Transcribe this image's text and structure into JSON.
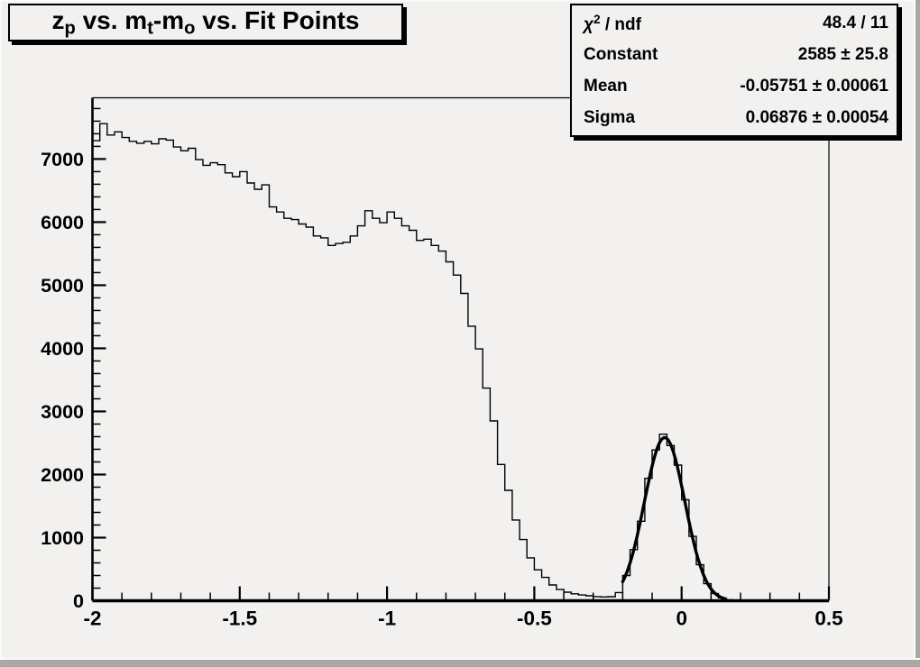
{
  "window": {
    "background": "#f2f1ef",
    "bevel_light": "#fbfbfa",
    "bevel_dark": "#a9a8a5",
    "foreground": "#000000"
  },
  "title_box": {
    "parts": [
      {
        "t": "z"
      },
      {
        "sub": "p"
      },
      {
        "t": " vs. m"
      },
      {
        "sub": "t"
      },
      {
        "t": "-m"
      },
      {
        "sub": "o"
      },
      {
        "t": " vs. Fit Points"
      }
    ]
  },
  "stats_box": {
    "rows": [
      {
        "label_parts": [
          {
            "t": "χ",
            "i": true
          },
          {
            "sup": "2"
          },
          {
            "t": " / ndf"
          }
        ],
        "value": "48.4 / 11"
      },
      {
        "label_parts": [
          {
            "t": "Constant"
          }
        ],
        "value": "2585 ± 25.8"
      },
      {
        "label_parts": [
          {
            "t": "Mean"
          }
        ],
        "value": "-0.05751 ± 0.00061"
      },
      {
        "label_parts": [
          {
            "t": "Sigma"
          }
        ],
        "value": "0.06876 ± 0.00054"
      }
    ]
  },
  "chart_data": {
    "type": "bar",
    "subtype": "step-histogram",
    "title": "z_p vs. m_t-m_o vs. Fit Points",
    "xlabel": "",
    "ylabel": "",
    "x_range": [
      -2,
      0.5
    ],
    "y_range": [
      0,
      7970
    ],
    "x_start": -2,
    "bin_width": 0.025,
    "n_bins": 100,
    "bins": [
      7290,
      7560,
      7380,
      7430,
      7340,
      7280,
      7250,
      7280,
      7240,
      7320,
      7300,
      7190,
      7130,
      7170,
      6990,
      6900,
      6940,
      6910,
      6780,
      6720,
      6800,
      6620,
      6520,
      6590,
      6240,
      6160,
      6060,
      6040,
      5970,
      5920,
      5780,
      5750,
      5630,
      5660,
      5680,
      5780,
      5940,
      6180,
      6060,
      5990,
      6160,
      6060,
      5940,
      5870,
      5710,
      5730,
      5630,
      5540,
      5370,
      5160,
      4870,
      4350,
      3990,
      3370,
      2850,
      2160,
      1750,
      1280,
      970,
      680,
      490,
      370,
      250,
      180,
      135,
      110,
      92,
      78,
      66,
      60,
      64,
      130,
      400,
      810,
      1260,
      1940,
      2390,
      2640,
      2460,
      2150,
      1600,
      1020,
      570,
      270,
      115,
      45,
      15,
      5,
      2,
      0,
      0,
      0,
      0,
      0,
      0,
      0,
      0,
      0,
      0,
      0
    ],
    "x_ticks": {
      "major": [
        -2,
        -1.5,
        -1,
        -0.5,
        0,
        0.5
      ],
      "major_labels": [
        "-2",
        "-1.5",
        "-1",
        "-0.5",
        "0",
        "0.5"
      ],
      "minor_step": 0.1
    },
    "y_ticks": {
      "major": [
        0,
        1000,
        2000,
        3000,
        4000,
        5000,
        6000,
        7000
      ],
      "major_labels": [
        "0",
        "1000",
        "2000",
        "3000",
        "4000",
        "5000",
        "6000",
        "7000"
      ],
      "minor_step": 200
    },
    "grid": false,
    "line_color": "#000000",
    "fit": {
      "type": "gaussian",
      "constant": 2585,
      "mean": -0.05751,
      "sigma": 0.06876,
      "draw_range": [
        -0.2,
        0.15
      ],
      "color": "#000000"
    }
  }
}
